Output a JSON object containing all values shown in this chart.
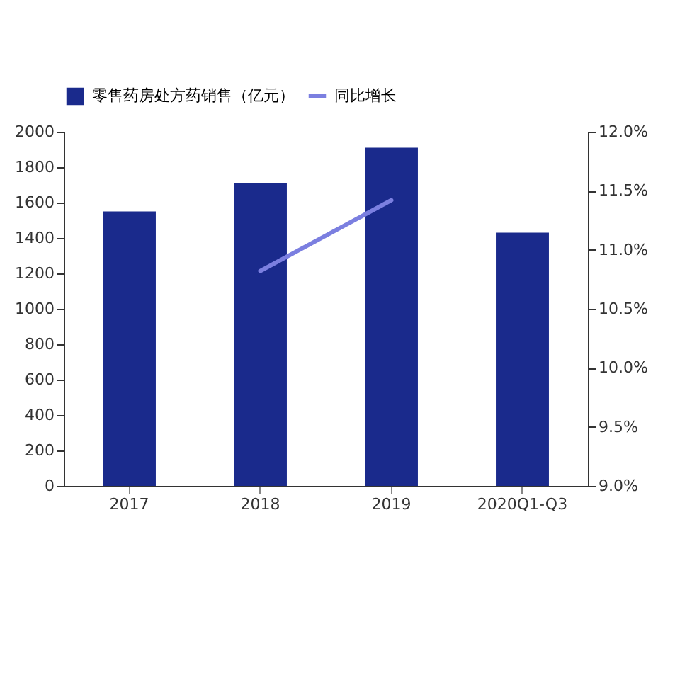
{
  "chart_data": {
    "type": "bar",
    "categories": [
      "2017",
      "2018",
      "2019",
      "2020Q1-Q3"
    ],
    "series": [
      {
        "name": "零售药房处方药销售（亿元）",
        "color": "#1a2a8c",
        "values": [
          1550,
          1710,
          1910,
          1430
        ]
      },
      {
        "name": "同比增长",
        "type": "line",
        "axis": "y2",
        "color": "#7b7fe0",
        "values": [
          null,
          10.82,
          11.42,
          null
        ]
      }
    ],
    "ylim": [
      0,
      2000
    ],
    "yticks": [
      0,
      200,
      400,
      600,
      800,
      1000,
      1200,
      1400,
      1600,
      1800,
      2000
    ],
    "y2lim": [
      9,
      12
    ],
    "y2ticks": [
      {
        "value": 9,
        "label": "9.0%"
      },
      {
        "value": 9.5,
        "label": "9.5%"
      },
      {
        "value": 10,
        "label": "10.0%"
      },
      {
        "value": 10.5,
        "label": "10.5%"
      },
      {
        "value": 11,
        "label": "11.0%"
      },
      {
        "value": 11.5,
        "label": "11.5%"
      },
      {
        "value": 12,
        "label": "12.0%"
      }
    ],
    "legend": "top",
    "grid": false
  }
}
